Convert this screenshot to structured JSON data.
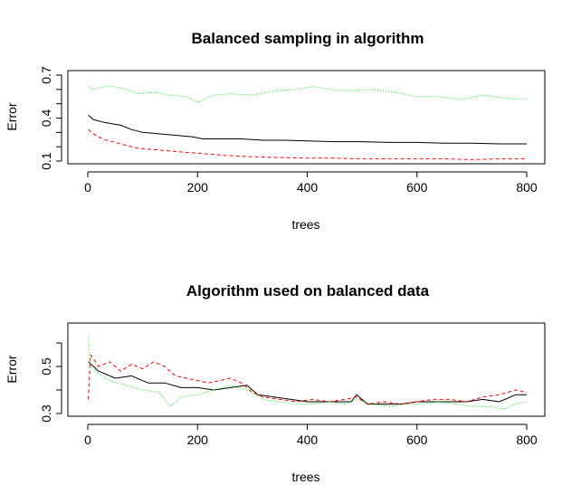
{
  "chart_data": [
    {
      "type": "line",
      "title": "Balanced sampling in algorithm",
      "xlabel": "trees",
      "ylabel": "Error",
      "xlim": [
        0,
        800
      ],
      "ylim": [
        0.1,
        0.7
      ],
      "xticks": [
        0,
        200,
        400,
        600,
        800
      ],
      "yticks": [
        0.1,
        0.4,
        0.7
      ],
      "xtick_labels": [
        "0",
        "200",
        "400",
        "600",
        "800"
      ],
      "ytick_labels": [
        "0.1",
        "0.4",
        "0.7"
      ],
      "grid": false,
      "series": [
        {
          "color": "#000000",
          "dash": "solid",
          "x": [
            1,
            10,
            30,
            60,
            80,
            100,
            130,
            160,
            190,
            210,
            250,
            280,
            320,
            360,
            400,
            450,
            500,
            550,
            600,
            650,
            700,
            750,
            800
          ],
          "y": [
            0.42,
            0.39,
            0.37,
            0.35,
            0.32,
            0.3,
            0.29,
            0.28,
            0.27,
            0.255,
            0.255,
            0.255,
            0.245,
            0.245,
            0.24,
            0.235,
            0.235,
            0.23,
            0.23,
            0.225,
            0.225,
            0.22,
            0.22
          ]
        },
        {
          "color": "#ff0000",
          "dash": "dashed",
          "x": [
            1,
            10,
            30,
            50,
            70,
            90,
            120,
            150,
            180,
            200,
            250,
            300,
            350,
            400,
            450,
            500,
            550,
            600,
            650,
            700,
            750,
            800
          ],
          "y": [
            0.32,
            0.29,
            0.25,
            0.23,
            0.21,
            0.19,
            0.18,
            0.17,
            0.16,
            0.155,
            0.14,
            0.13,
            0.125,
            0.12,
            0.12,
            0.115,
            0.115,
            0.115,
            0.115,
            0.11,
            0.115,
            0.115
          ]
        },
        {
          "color": "#00ee00",
          "dash": "dotted",
          "x": [
            1,
            10,
            30,
            50,
            70,
            90,
            120,
            150,
            180,
            200,
            230,
            260,
            300,
            340,
            380,
            410,
            440,
            480,
            520,
            560,
            600,
            640,
            680,
            720,
            760,
            800
          ],
          "y": [
            0.62,
            0.6,
            0.62,
            0.62,
            0.6,
            0.57,
            0.58,
            0.56,
            0.55,
            0.51,
            0.56,
            0.57,
            0.56,
            0.59,
            0.6,
            0.62,
            0.6,
            0.59,
            0.6,
            0.58,
            0.55,
            0.55,
            0.53,
            0.56,
            0.54,
            0.53
          ]
        }
      ]
    },
    {
      "type": "line",
      "title": "Algorithm used on balanced data",
      "xlabel": "trees",
      "ylabel": "Error",
      "xlim": [
        0,
        800
      ],
      "ylim": [
        0.3,
        0.6
      ],
      "xticks": [
        0,
        200,
        400,
        600,
        800
      ],
      "yticks": [
        0.3,
        0.5
      ],
      "xtick_labels": [
        "0",
        "200",
        "400",
        "600",
        "800"
      ],
      "ytick_labels": [
        "0.3",
        "0.5"
      ],
      "grid": false,
      "series": [
        {
          "color": "#000000",
          "dash": "solid",
          "x": [
            1,
            20,
            50,
            80,
            110,
            140,
            170,
            200,
            230,
            260,
            290,
            310,
            340,
            370,
            400,
            430,
            460,
            480,
            490,
            510,
            540,
            570,
            600,
            630,
            660,
            690,
            720,
            750,
            780,
            800
          ],
          "y": [
            0.52,
            0.48,
            0.45,
            0.46,
            0.43,
            0.43,
            0.41,
            0.41,
            0.4,
            0.41,
            0.42,
            0.38,
            0.37,
            0.36,
            0.35,
            0.35,
            0.35,
            0.35,
            0.38,
            0.34,
            0.34,
            0.34,
            0.35,
            0.35,
            0.35,
            0.35,
            0.36,
            0.35,
            0.38,
            0.38
          ]
        },
        {
          "color": "#ff0000",
          "dash": "dashed",
          "x": [
            1,
            5,
            20,
            40,
            60,
            80,
            100,
            120,
            140,
            160,
            180,
            200,
            220,
            240,
            260,
            280,
            300,
            320,
            350,
            380,
            410,
            440,
            470,
            490,
            510,
            540,
            570,
            600,
            630,
            660,
            690,
            720,
            750,
            780,
            800
          ],
          "y": [
            0.36,
            0.55,
            0.5,
            0.52,
            0.48,
            0.51,
            0.49,
            0.52,
            0.5,
            0.46,
            0.45,
            0.44,
            0.43,
            0.44,
            0.45,
            0.43,
            0.39,
            0.37,
            0.36,
            0.35,
            0.36,
            0.35,
            0.36,
            0.37,
            0.34,
            0.35,
            0.34,
            0.35,
            0.36,
            0.36,
            0.35,
            0.37,
            0.38,
            0.4,
            0.39
          ]
        },
        {
          "color": "#00ee00",
          "dash": "dotted",
          "x": [
            1,
            5,
            20,
            40,
            70,
            100,
            130,
            150,
            170,
            200,
            230,
            260,
            290,
            320,
            350,
            380,
            410,
            440,
            470,
            490,
            520,
            550,
            580,
            610,
            640,
            670,
            700,
            730,
            760,
            780,
            800
          ],
          "y": [
            0.63,
            0.5,
            0.47,
            0.44,
            0.42,
            0.4,
            0.39,
            0.33,
            0.37,
            0.38,
            0.4,
            0.42,
            0.4,
            0.36,
            0.35,
            0.34,
            0.34,
            0.35,
            0.34,
            0.36,
            0.34,
            0.33,
            0.34,
            0.34,
            0.35,
            0.34,
            0.33,
            0.33,
            0.32,
            0.34,
            0.35
          ]
        }
      ]
    }
  ]
}
